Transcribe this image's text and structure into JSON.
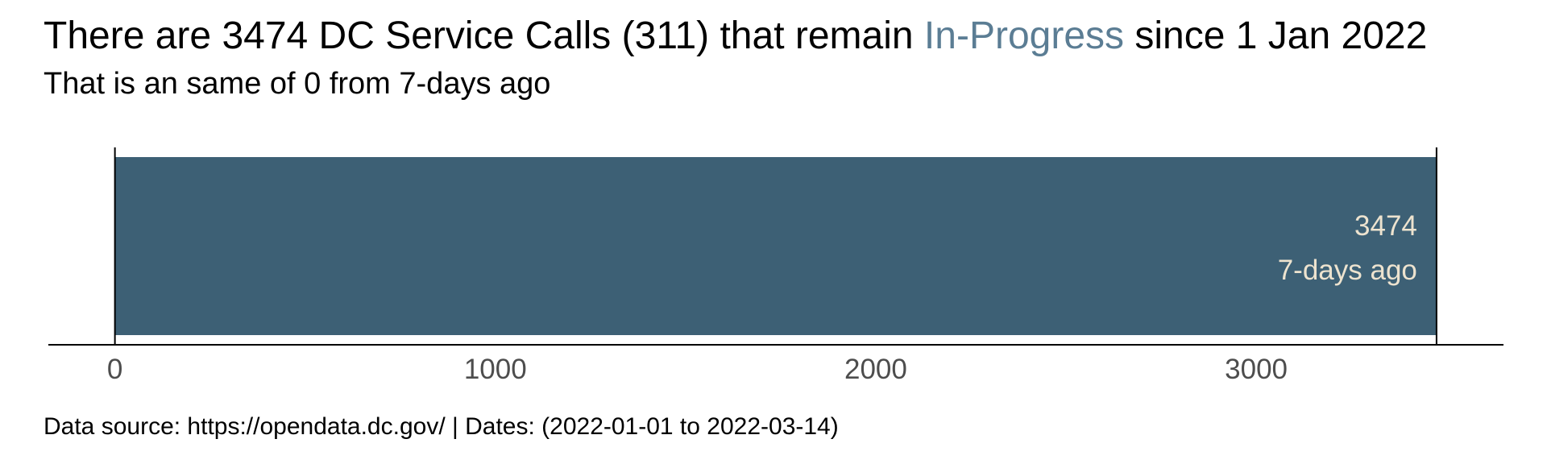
{
  "header": {
    "title_prefix": "There are 3474 DC Service Calls (311) that remain ",
    "title_highlight": "In-Progress",
    "title_suffix": " since 1 Jan 2022",
    "subtitle": "That is an same of 0 from 7-days ago"
  },
  "footer": {
    "caption": "Data source: https://opendata.dc.gov/ | Dates: (2022-01-01 to 2022-03-14)"
  },
  "colors": {
    "bar": "#3d6075",
    "highlight": "#5b7d94",
    "bar_label": "#ede3cf"
  },
  "chart_data": {
    "type": "bar",
    "orientation": "horizontal",
    "categories": [
      "7-days ago"
    ],
    "values": [
      3474
    ],
    "value_labels": [
      "3474"
    ],
    "bar_category_labels": [
      "7-days ago"
    ],
    "xlim": [
      -175,
      3650
    ],
    "xticks": [
      0,
      1000,
      2000,
      3000
    ],
    "xtick_labels": [
      "0",
      "1000",
      "2000",
      "3000"
    ],
    "reference_lines": [
      0,
      3474
    ],
    "grid": false,
    "legend": "none"
  }
}
